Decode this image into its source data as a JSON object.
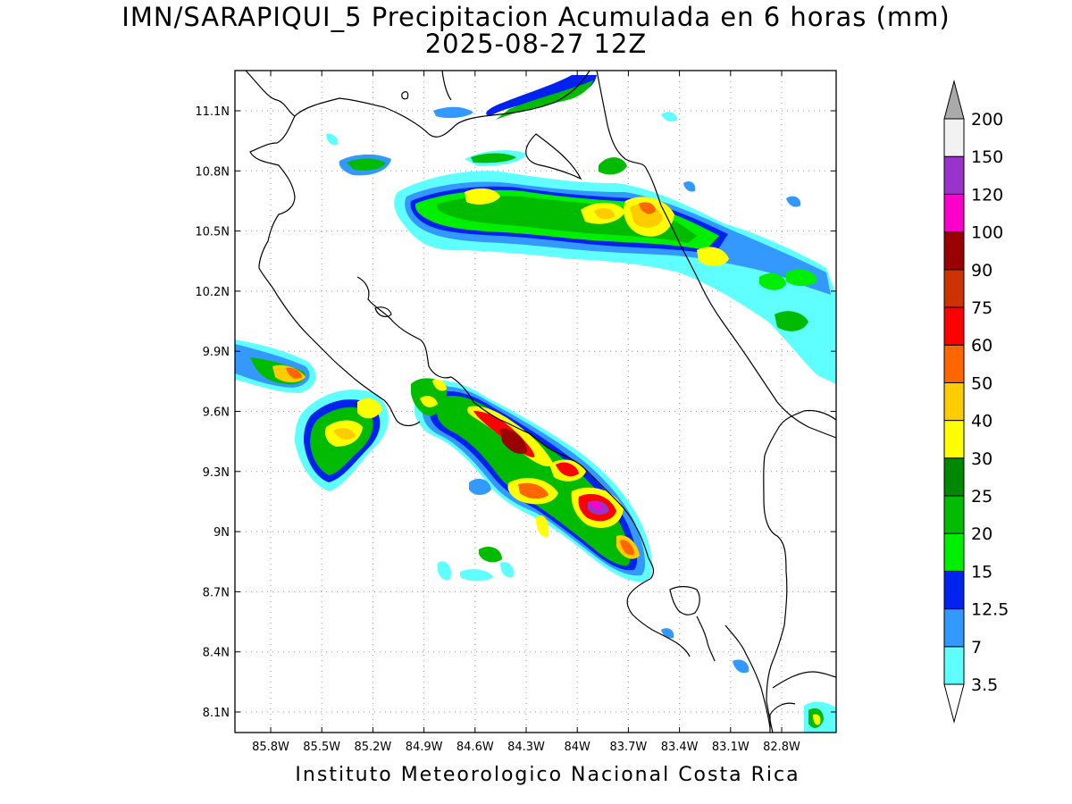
{
  "title": {
    "line1": "IMN/SARAPIQUI_5 Precipitacion Acumulada en 6 horas (mm)",
    "line2": "2025-08-27 12Z"
  },
  "footer": "Instituto Meteorologico Nacional Costa Rica",
  "axes": {
    "lat_ticks": [
      "11.1N",
      "10.8N",
      "10.5N",
      "10.2N",
      "9.9N",
      "9.6N",
      "9.3N",
      "9N",
      "8.7N",
      "8.4N",
      "8.1N"
    ],
    "lon_ticks": [
      "85.8W",
      "85.5W",
      "85.2W",
      "84.9W",
      "84.6W",
      "84.3W",
      "84W",
      "83.7W",
      "83.4W",
      "83.1W",
      "82.8W"
    ]
  },
  "colorbar": {
    "levels": [
      "3.5",
      "7",
      "12.5",
      "15",
      "20",
      "25",
      "30",
      "40",
      "50",
      "60",
      "75",
      "90",
      "100",
      "120",
      "150",
      "200"
    ],
    "colors": [
      "#60ffff",
      "#3399ff",
      "#0022ee",
      "#00ee00",
      "#00bb00",
      "#008800",
      "#ffff00",
      "#ffcc00",
      "#ff6600",
      "#ff0000",
      "#cc3300",
      "#990000",
      "#ff00cc",
      "#9933cc",
      "#f2f2f2",
      "#aaaaaa"
    ]
  }
}
